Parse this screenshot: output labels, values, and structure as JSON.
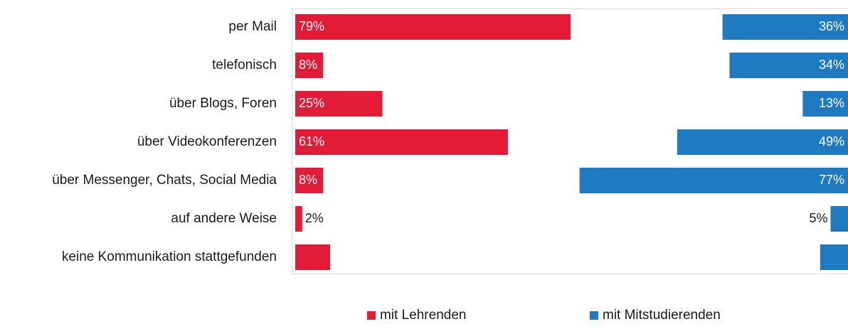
{
  "chart_data": {
    "type": "bar",
    "orientation": "horizontal",
    "layout": "back-to-back",
    "categories": [
      "per Mail",
      "telefonisch",
      "über Blogs, Foren",
      "über Videokonferenzen",
      "über Messenger, Chats, Social Media",
      "auf andere Weise",
      "keine Kommunikation stattgefunden"
    ],
    "series": [
      {
        "name": "mit Lehrenden",
        "color": "#e31b37",
        "direction": "left-to-right",
        "values": [
          79,
          8,
          25,
          61,
          8,
          2,
          10
        ],
        "labels": [
          "79%",
          "8%",
          "25%",
          "61%",
          "8%",
          "2%",
          ""
        ]
      },
      {
        "name": "mit Mitstudierenden",
        "color": "#1f7bc1",
        "direction": "right-to-left",
        "values": [
          36,
          34,
          13,
          49,
          77,
          5,
          8
        ],
        "labels": [
          "36%",
          "34%",
          "13%",
          "49%",
          "77%",
          "5%",
          ""
        ]
      }
    ],
    "xlim": [
      0,
      100
    ],
    "unit": "%",
    "legend_position": "bottom",
    "gridlines": false
  }
}
